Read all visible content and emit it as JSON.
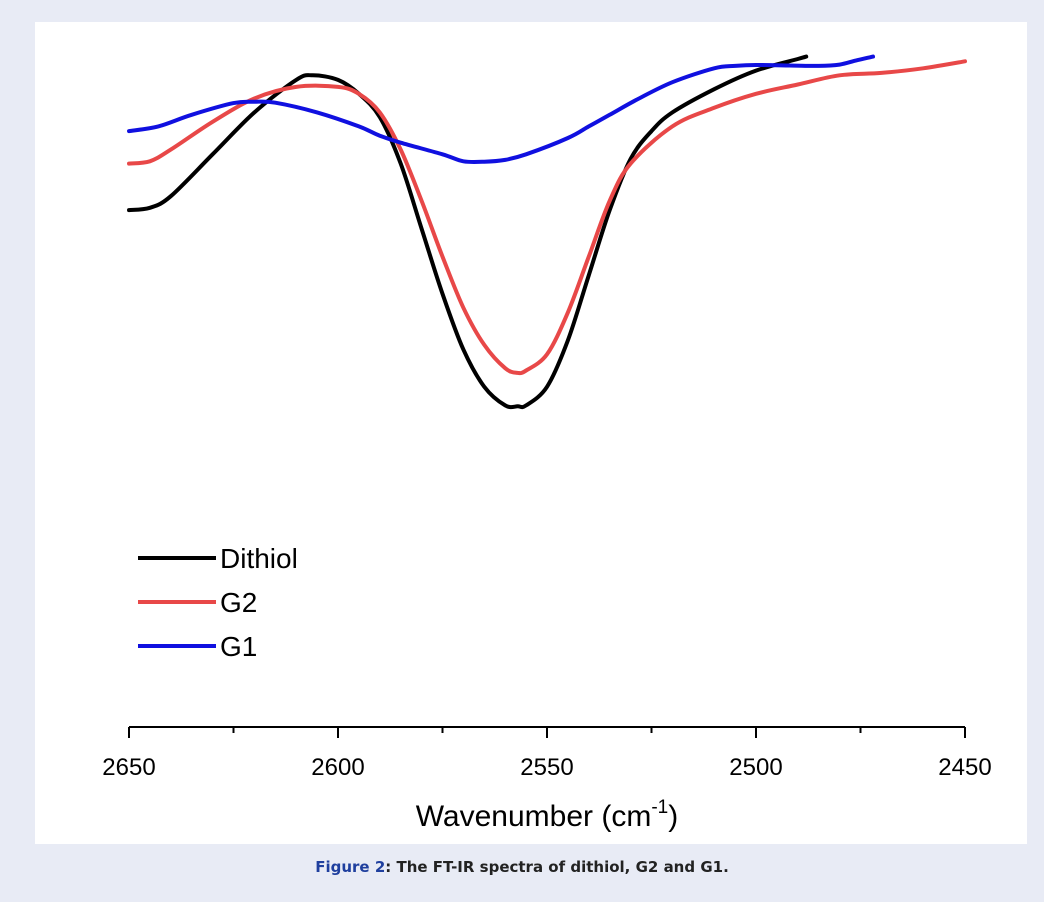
{
  "caption": {
    "label": "Figure 2",
    "separator": ": ",
    "text": "The FT-IR spectra of dithiol, G2 and G1."
  },
  "chart_data": {
    "type": "line",
    "xlabel": "Wavenumber (cm",
    "xlabel_sup": "-1",
    "xlabel_close": ")",
    "x_reversed": true,
    "xlim": [
      2650,
      2450
    ],
    "xticks": [
      2650,
      2600,
      2550,
      2500,
      2450
    ],
    "xtick_labels": [
      "2650",
      "2600",
      "2550",
      "2500",
      "2450"
    ],
    "xminor_step": 25,
    "yaxis_visible": false,
    "ylim": [
      0,
      100
    ],
    "grid": false,
    "legend_position": "lower-left",
    "series": [
      {
        "name": "Dithiol",
        "color": "#000000",
        "x": [
          2650,
          2645,
          2640,
          2630,
          2620,
          2610,
          2606,
          2600,
          2595,
          2590,
          2585,
          2580,
          2575,
          2570,
          2565,
          2560,
          2557,
          2555,
          2550,
          2545,
          2540,
          2535,
          2530,
          2525,
          2520,
          2510,
          2500,
          2490,
          2488
        ],
        "y": [
          66,
          66.5,
          69,
          78,
          87,
          94,
          95,
          94,
          91,
          86,
          76,
          62,
          48,
          36,
          28,
          24,
          23.8,
          24,
          28,
          38,
          52,
          66,
          77,
          83,
          87,
          92,
          96,
          98.5,
          99
        ]
      },
      {
        "name": "G2",
        "color": "#e84848",
        "x": [
          2650,
          2645,
          2640,
          2630,
          2620,
          2610,
          2600,
          2595,
          2590,
          2585,
          2580,
          2575,
          2570,
          2565,
          2560,
          2557,
          2555,
          2550,
          2545,
          2540,
          2535,
          2530,
          2520,
          2510,
          2500,
          2490,
          2480,
          2470,
          2460,
          2450
        ],
        "y": [
          76,
          76.5,
          79,
          85,
          90,
          92.5,
          92.5,
          91,
          87,
          79,
          68,
          56,
          45,
          37,
          32,
          31,
          31.5,
          35,
          44,
          56,
          68,
          76,
          84,
          88,
          91,
          93,
          95,
          95.5,
          96.5,
          98
        ]
      },
      {
        "name": "G1",
        "color": "#1010e0",
        "x": [
          2650,
          2643,
          2635,
          2625,
          2620,
          2615,
          2605,
          2595,
          2590,
          2585,
          2575,
          2570,
          2565,
          2560,
          2555,
          2545,
          2540,
          2535,
          2528,
          2520,
          2510,
          2505,
          2500,
          2492,
          2485,
          2480,
          2476,
          2472
        ],
        "y": [
          83,
          84,
          86.5,
          89,
          89.3,
          89.1,
          87,
          84,
          82,
          80.5,
          78,
          76.5,
          76.4,
          76.8,
          78,
          81.5,
          84,
          86.5,
          90,
          93.5,
          96.5,
          97,
          97.2,
          97.1,
          97,
          97.3,
          98.2,
          99
        ]
      }
    ]
  }
}
